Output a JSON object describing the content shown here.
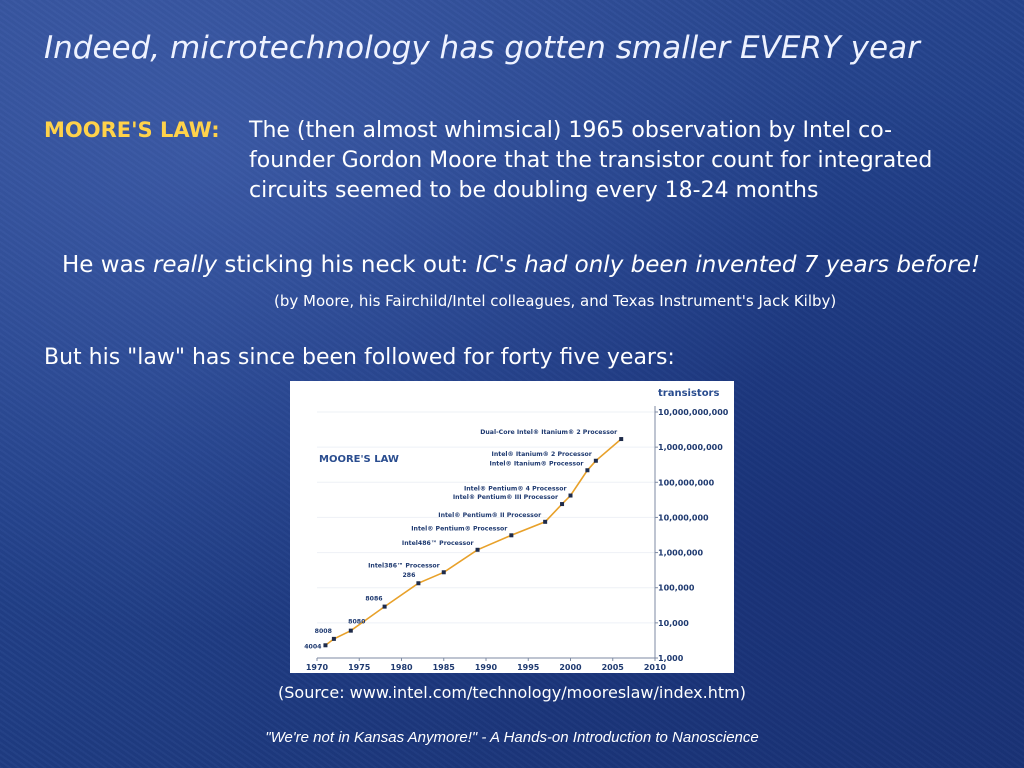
{
  "slide": {
    "title": "Indeed, microtechnology has gotten smaller EVERY year",
    "law_label": "MOORE'S LAW:",
    "law_text": "The (then almost whimsical) 1965 observation by Intel co-founder Gordon Moore that the transistor count for integrated circuits seemed to be doubling every 18-24 months",
    "neck_prefix": "He was ",
    "neck_emph": "really",
    "neck_middle": " sticking his neck out: ",
    "neck_italic": "IC's had only been invented 7 years before!",
    "credit": "(by Moore, his Fairchild/Intel colleagues, and Texas Instrument's Jack Kilby)",
    "but_line": "But his \"law\" has since been followed for forty five years:",
    "source": "(Source: www.intel.com/technology/mooreslaw/index.htm)",
    "footer": "\"We're not in Kansas Anymore!\" - A Hands-on Introduction to Nanoscience"
  },
  "colors": {
    "label_yellow": "#ffd24a",
    "chart_line": "#e8a12a",
    "chart_title": "#2a4d8f",
    "chart_text": "#1f3a70"
  },
  "chart_data": {
    "type": "line",
    "title": "MOORE'S LAW",
    "ylabel": "transistors",
    "xlabel": "",
    "y_scale": "log",
    "xlim": [
      1970,
      2010
    ],
    "ylim": [
      1000,
      10000000000
    ],
    "x_ticks": [
      "1970",
      "1975",
      "1980",
      "1985",
      "1990",
      "1995",
      "2000",
      "2005",
      "2010"
    ],
    "y_ticks": [
      "10,000,000,000",
      "1,000,000,000",
      "100,000,000",
      "10,000,000",
      "1,000,000",
      "100,000",
      "10,000",
      "1,000"
    ],
    "points": [
      {
        "x": 1971,
        "y": 2300,
        "label": "4004"
      },
      {
        "x": 1972,
        "y": 3500,
        "label": "8008"
      },
      {
        "x": 1974,
        "y": 6000,
        "label": "8080"
      },
      {
        "x": 1978,
        "y": 29000,
        "label": "8086"
      },
      {
        "x": 1982,
        "y": 134000,
        "label": "286"
      },
      {
        "x": 1985,
        "y": 275000,
        "label": "Intel386™ Processor"
      },
      {
        "x": 1989,
        "y": 1200000,
        "label": "Intel486™ Processor"
      },
      {
        "x": 1993,
        "y": 3100000,
        "label": "Intel® Pentium® Processor"
      },
      {
        "x": 1997,
        "y": 7500000,
        "label": "Intel® Pentium® II Processor"
      },
      {
        "x": 1999,
        "y": 24000000,
        "label": "Intel® Pentium® III Processor"
      },
      {
        "x": 2000,
        "y": 42000000,
        "label": "Intel® Pentium® 4 Processor"
      },
      {
        "x": 2002,
        "y": 220000000,
        "label": "Intel® Itanium® Processor"
      },
      {
        "x": 2003,
        "y": 410000000,
        "label": "Intel® Itanium® 2 Processor"
      },
      {
        "x": 2006,
        "y": 1700000000,
        "label": "Dual-Core Intel® Itanium® 2 Processor"
      }
    ]
  }
}
